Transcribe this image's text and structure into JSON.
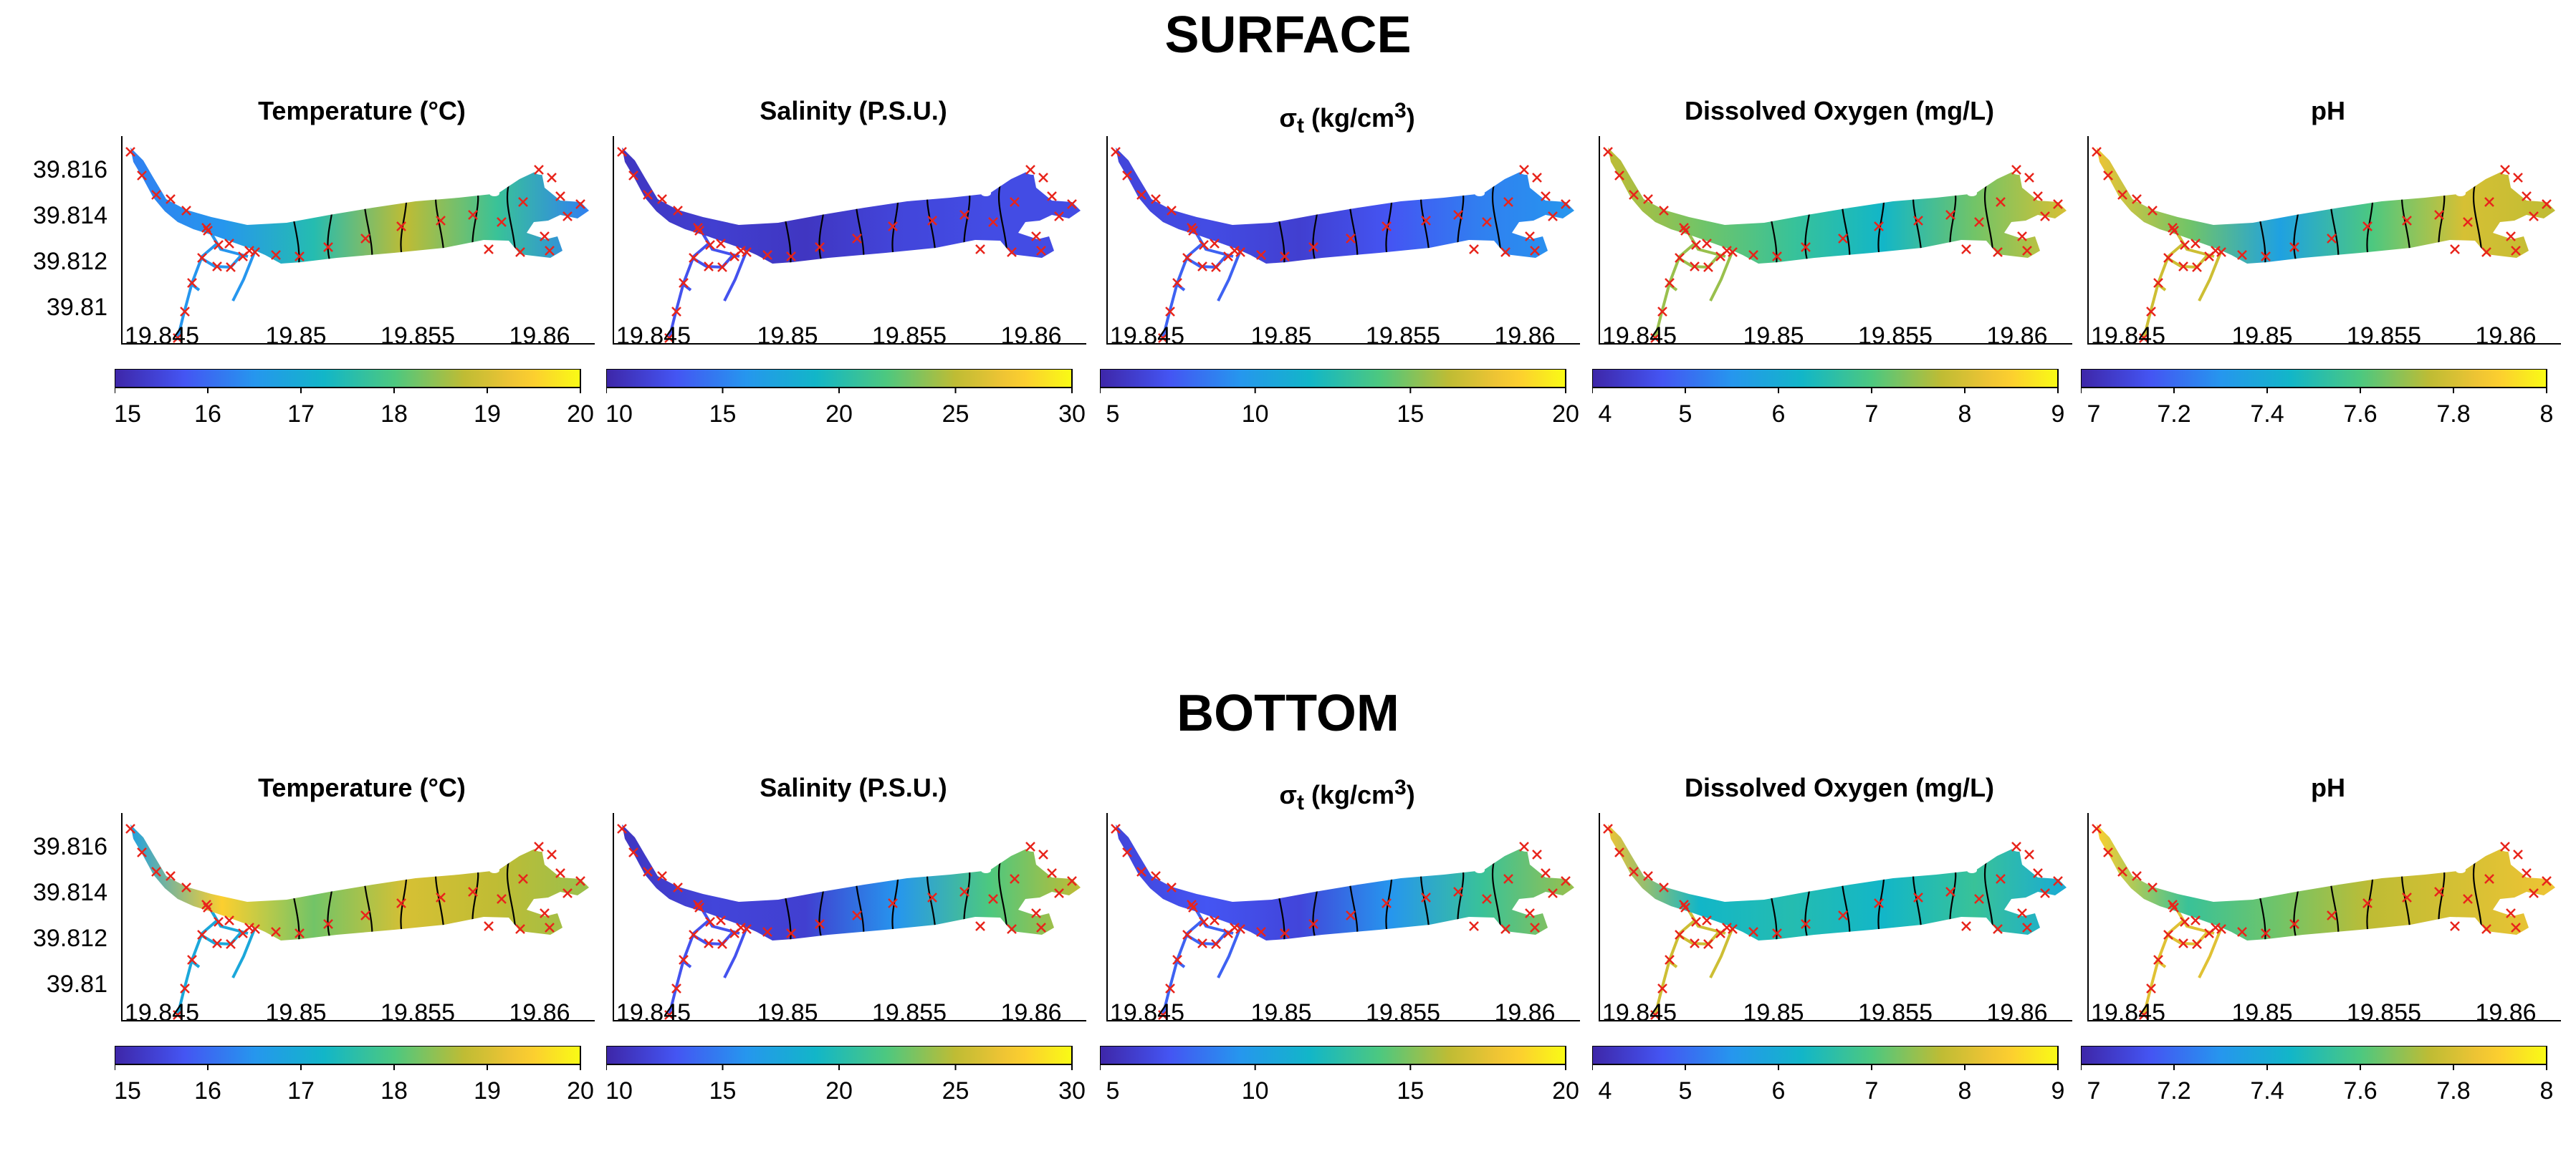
{
  "sections": [
    {
      "id": "surface",
      "title": "SURFACE"
    },
    {
      "id": "bottom",
      "title": "BOTTOM"
    }
  ],
  "axes": {
    "lon_ticks": [
      "19.845",
      "19.85",
      "19.855",
      "19.86"
    ],
    "lat_ticks": [
      "39.816",
      "39.814",
      "39.812",
      "39.81"
    ]
  },
  "colors": {
    "low": "#3e26a8",
    "mid": "#12b4c8",
    "high": "#f9fb15",
    "marker": "#e8241b",
    "contour": "#000000"
  },
  "chart_data": [
    {
      "type": "heatmap",
      "section": "SURFACE",
      "title": "Temperature (°C)",
      "colorbar": {
        "min": 15,
        "max": 20,
        "ticks": [
          "15",
          "16",
          "17",
          "18",
          "19",
          "20"
        ]
      },
      "field": [
        0.25,
        0.3,
        0.5,
        0.75,
        0.55,
        0.25
      ]
    },
    {
      "type": "heatmap",
      "section": "SURFACE",
      "title": "Salinity (P.S.U.)",
      "colorbar": {
        "min": 10,
        "max": 30,
        "ticks": [
          "10",
          "15",
          "20",
          "25",
          "30"
        ]
      },
      "field": [
        0.05,
        0.08,
        0.05,
        0.1,
        0.12,
        0.12
      ]
    },
    {
      "type": "heatmap",
      "section": "SURFACE",
      "title_html": "σ<sub>t</sub> (kg/cm<sup>3</sup>)",
      "title": "σt (kg/cm3)",
      "colorbar": {
        "min": 5,
        "max": 20,
        "ticks": [
          "5",
          "10",
          "15",
          "20"
        ]
      },
      "field": [
        0.1,
        0.12,
        0.08,
        0.15,
        0.25,
        0.3
      ]
    },
    {
      "type": "heatmap",
      "section": "SURFACE",
      "title": "Dissolved Oxygen (mg/L)",
      "colorbar": {
        "min": 4,
        "max": 9,
        "ticks": [
          "4",
          "5",
          "6",
          "7",
          "8",
          "9"
        ]
      },
      "field": [
        0.75,
        0.65,
        0.55,
        0.45,
        0.65,
        0.8
      ]
    },
    {
      "type": "heatmap",
      "section": "SURFACE",
      "title": "pH",
      "colorbar": {
        "min": 7,
        "max": 8,
        "ticks": [
          "7",
          "7.2",
          "7.4",
          "7.6",
          "7.8",
          "8"
        ]
      },
      "field": [
        0.85,
        0.65,
        0.35,
        0.6,
        0.8,
        0.75
      ]
    },
    {
      "type": "heatmap",
      "section": "BOTTOM",
      "title": "Temperature (°C)",
      "colorbar": {
        "min": 15,
        "max": 20,
        "ticks": [
          "15",
          "16",
          "17",
          "18",
          "19",
          "20"
        ]
      },
      "field": [
        0.35,
        0.9,
        0.65,
        0.8,
        0.75,
        0.7
      ]
    },
    {
      "type": "heatmap",
      "section": "BOTTOM",
      "title": "Salinity (P.S.U.)",
      "colorbar": {
        "min": 10,
        "max": 30,
        "ticks": [
          "10",
          "15",
          "20",
          "25",
          "30"
        ]
      },
      "field": [
        0.05,
        0.1,
        0.08,
        0.3,
        0.6,
        0.75
      ]
    },
    {
      "type": "heatmap",
      "section": "BOTTOM",
      "title_html": "σ<sub>t</sub> (kg/cm<sup>3</sup>)",
      "title": "σt (kg/cm3)",
      "colorbar": {
        "min": 5,
        "max": 20,
        "ticks": [
          "5",
          "10",
          "15",
          "20"
        ]
      },
      "field": [
        0.1,
        0.15,
        0.1,
        0.3,
        0.55,
        0.7
      ]
    },
    {
      "type": "heatmap",
      "section": "BOTTOM",
      "title": "Dissolved Oxygen (mg/L)",
      "colorbar": {
        "min": 4,
        "max": 9,
        "ticks": [
          "4",
          "5",
          "6",
          "7",
          "8",
          "9"
        ]
      },
      "field": [
        0.85,
        0.45,
        0.5,
        0.45,
        0.55,
        0.4
      ]
    },
    {
      "type": "heatmap",
      "section": "BOTTOM",
      "title": "pH",
      "colorbar": {
        "min": 7,
        "max": 8,
        "ticks": [
          "7",
          "7.2",
          "7.4",
          "7.6",
          "7.8",
          "8"
        ]
      },
      "field": [
        0.9,
        0.55,
        0.65,
        0.75,
        0.8,
        0.85
      ]
    }
  ]
}
